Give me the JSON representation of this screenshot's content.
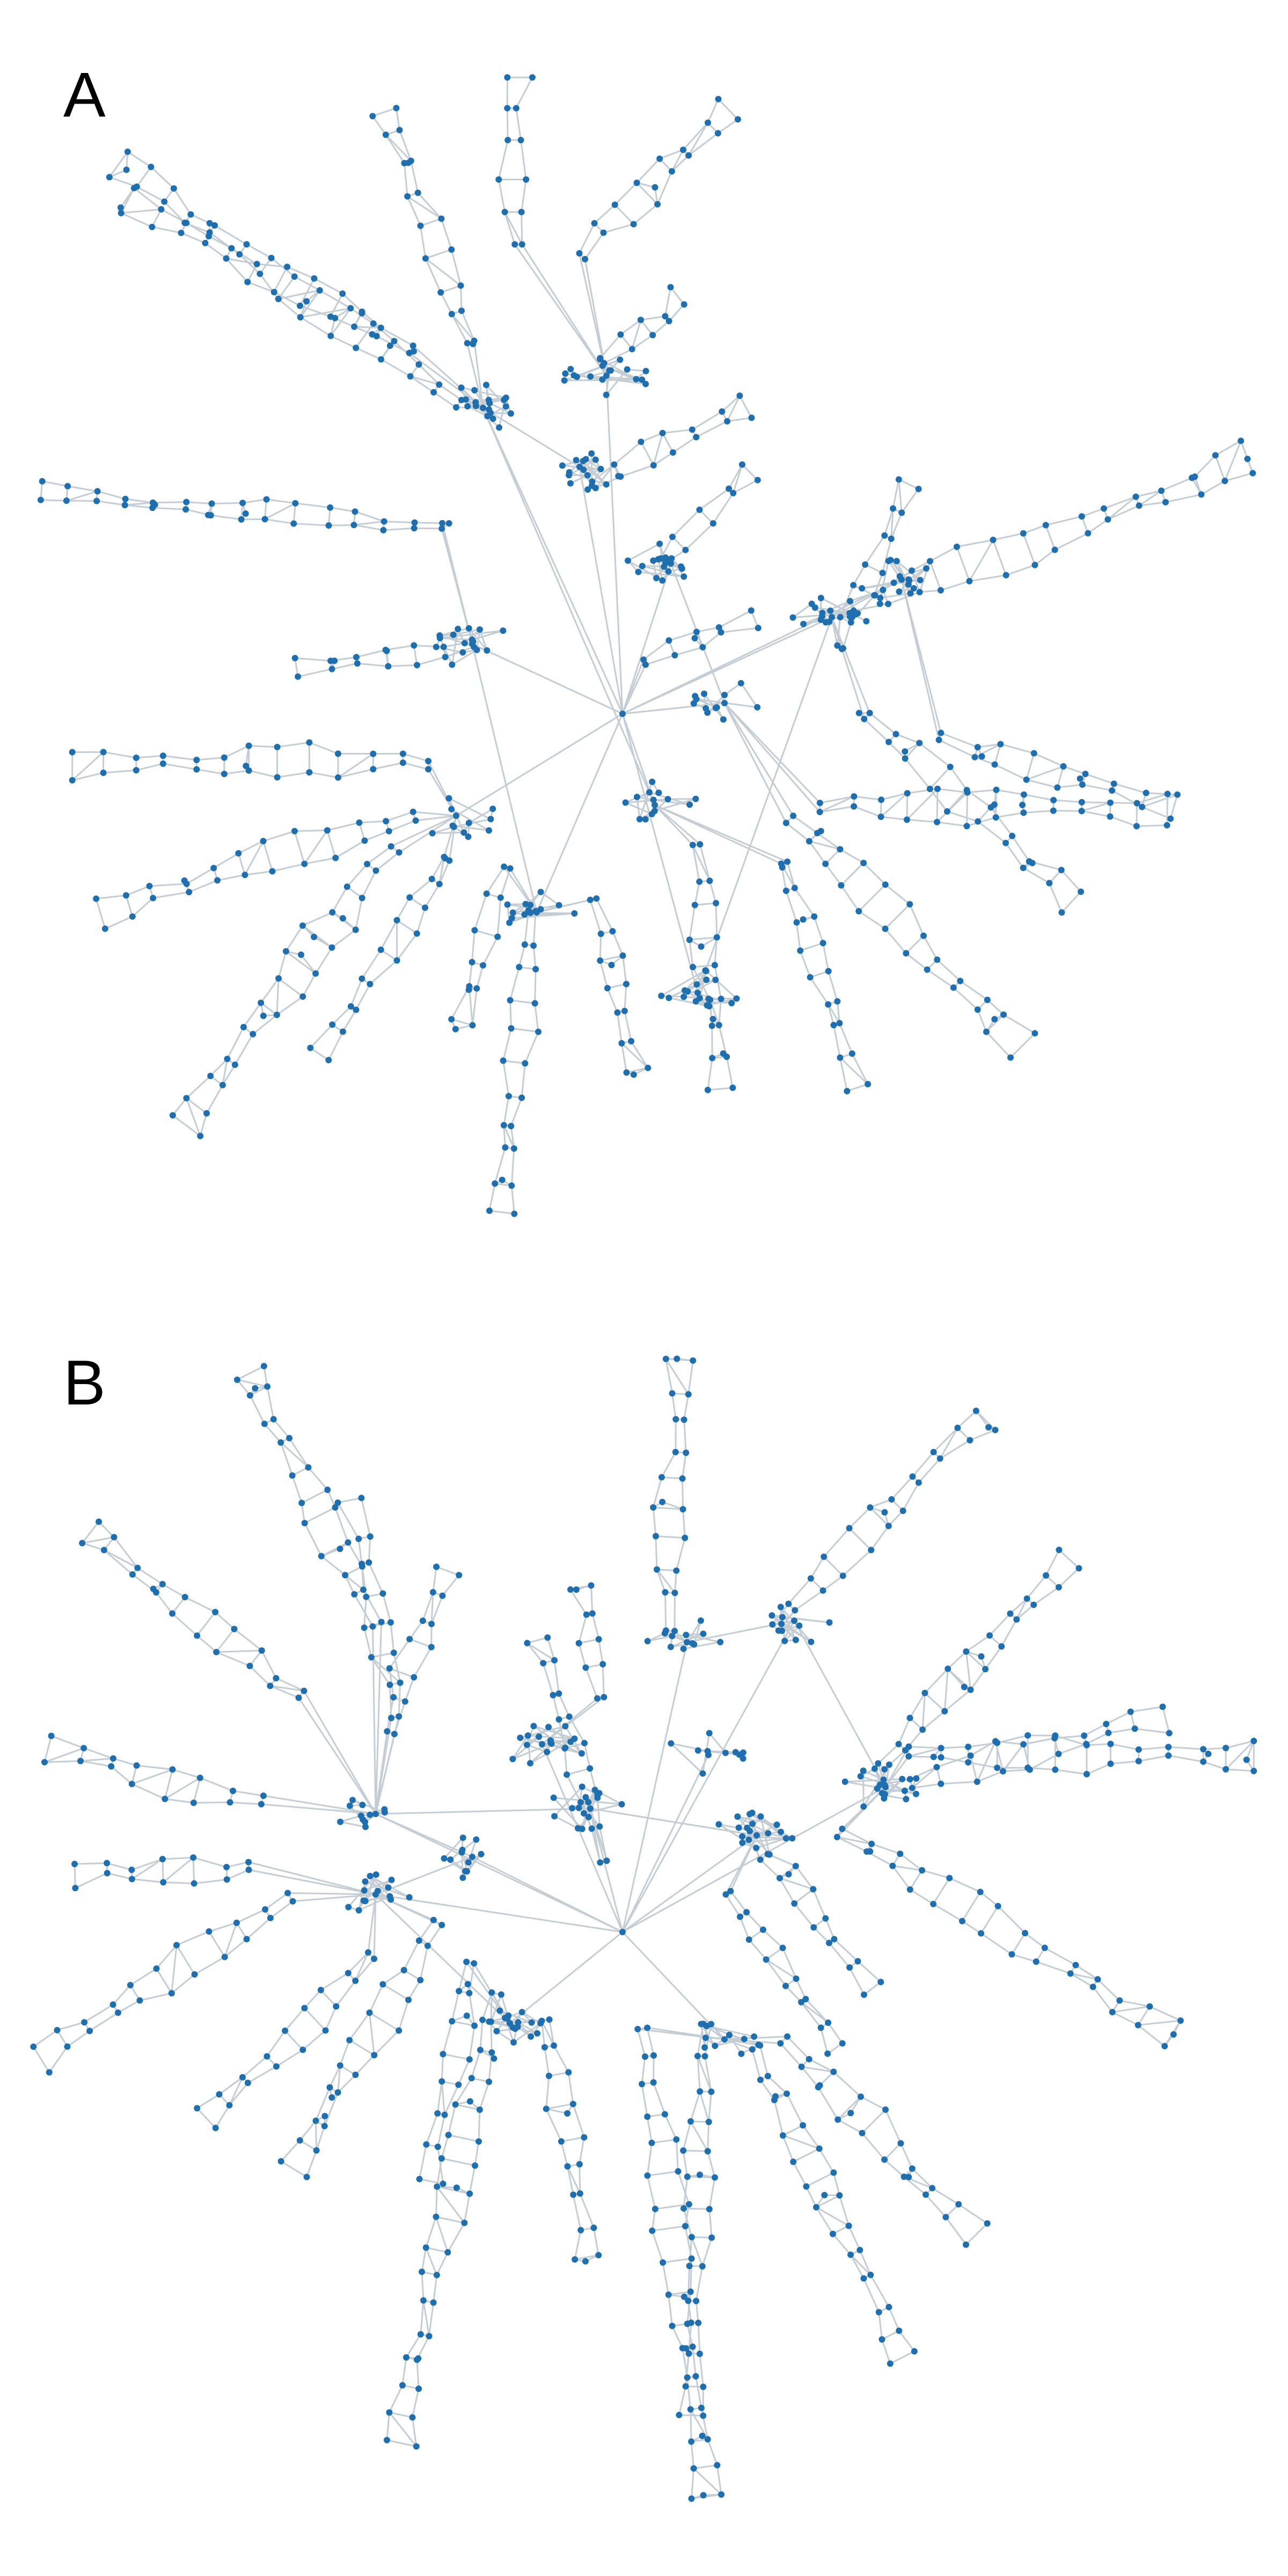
{
  "panels": [
    {
      "label": "A"
    },
    {
      "label": "B"
    }
  ],
  "colors": {
    "node": "#1f6fae",
    "edge": "#c4ccd4",
    "background": "#ffffff"
  }
}
